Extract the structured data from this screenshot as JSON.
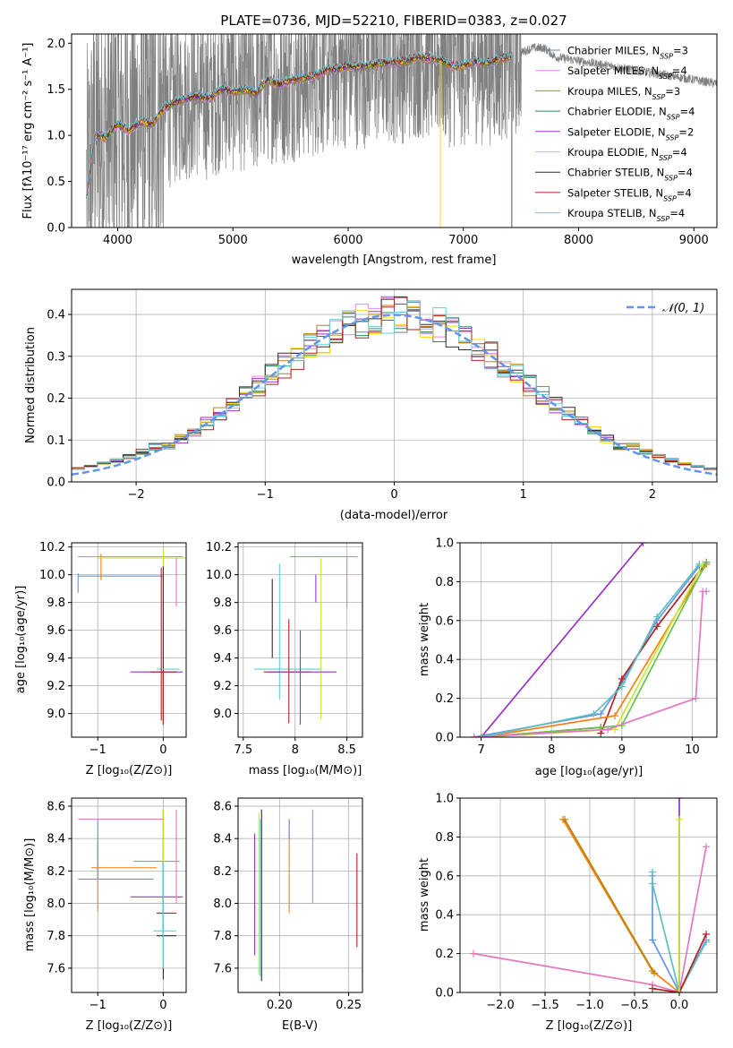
{
  "figure": {
    "title": "PLATE=0736, MJD=52210, FIBERID=0383, z=0.027"
  },
  "colors": {
    "Chabrier MILES": "#708090",
    "Salpeter MILES": "#ee82ee",
    "Kroupa MILES": "#b8860b",
    "Chabrier ELODIE": "#2e8b57",
    "Salpeter ELODIE": "#9932cc",
    "Kroupa ELODIE": "#ffd700",
    "Chabrier STELIB": "#2f2f2f",
    "Salpeter STELIB": "#b22222",
    "Kroupa STELIB": "#66cdd8",
    "data_spectrum": "#808080",
    "mw_blue": "#6495ed",
    "mw_orange": "#ff7f0e",
    "mw_yellowgreen": "#c8e632",
    "mw_pink": "#e377c2",
    "mw_teal": "#5fbfbf",
    "mw_green": "#66c24a",
    "gauss": "#6495ed"
  },
  "chart_data": [
    {
      "id": "spectrum",
      "type": "line",
      "title": "PLATE=0736, MJD=52210, FIBERID=0383, z=0.027",
      "xlabel": "wavelength [Angstrom, rest frame]",
      "ylabel": "Flux [f_λ 10^-17 erg cm^-2 s^-1 A^-1]",
      "xlim": [
        3600,
        9200
      ],
      "ylim": [
        0,
        2.1
      ],
      "xticks": [
        4000,
        5000,
        6000,
        7000,
        8000,
        9000
      ],
      "yticks": [
        0.0,
        0.5,
        1.0,
        1.5,
        2.0
      ],
      "grid": false,
      "legend_position": "right",
      "legend": [
        {
          "name": "Chabrier MILES",
          "nssp": "3"
        },
        {
          "name": "Salpeter MILES",
          "nssp": "4"
        },
        {
          "name": "Kroupa MILES",
          "nssp": "3"
        },
        {
          "name": "Chabrier ELODIE",
          "nssp": "4"
        },
        {
          "name": "Salpeter ELODIE",
          "nssp": "2"
        },
        {
          "name": "Kroupa ELODIE",
          "nssp": "4"
        },
        {
          "name": "Chabrier STELIB",
          "nssp": "4"
        },
        {
          "name": "Salpeter STELIB",
          "nssp": "4"
        },
        {
          "name": "Kroupa STELIB",
          "nssp": "4"
        }
      ],
      "model_continuum": {
        "x": [
          3730,
          3800,
          3900,
          4000,
          4100,
          4200,
          4300,
          4400,
          4500,
          4600,
          4700,
          4800,
          4900,
          5000,
          5100,
          5200,
          5300,
          5400,
          5500,
          5600,
          5700,
          5800,
          5900,
          6000,
          6100,
          6200,
          6300,
          6400,
          6500,
          6600,
          6700,
          6800,
          6900,
          7000,
          7100,
          7200,
          7300,
          7400,
          7500,
          7600,
          7700,
          7800
        ],
        "y": [
          0.35,
          1.0,
          0.98,
          1.12,
          1.05,
          1.15,
          1.12,
          1.3,
          1.35,
          1.4,
          1.42,
          1.4,
          1.5,
          1.48,
          1.5,
          1.45,
          1.6,
          1.55,
          1.6,
          1.62,
          1.64,
          1.7,
          1.72,
          1.75,
          1.74,
          1.76,
          1.78,
          1.8,
          1.8,
          1.85,
          1.84,
          1.82,
          1.75,
          1.76,
          1.8,
          1.78,
          1.82,
          1.85,
          1.9,
          1.95,
          1.95,
          1.85
        ]
      },
      "data_range_x": [
        3730,
        9200
      ],
      "model_range_x": [
        3730,
        7420
      ]
    },
    {
      "id": "residuals",
      "type": "bar",
      "xlabel": "(data-model)/error",
      "ylabel": "Normed distribution",
      "xlim": [
        -2.5,
        2.5
      ],
      "ylim": [
        0,
        0.46
      ],
      "xticks": [
        -2,
        -1,
        0,
        1,
        2
      ],
      "yticks": [
        0.0,
        0.1,
        0.2,
        0.3,
        0.4
      ],
      "grid": true,
      "legend_position": "top-right",
      "legend": [
        {
          "name": "𝒩(0, 1)"
        }
      ],
      "bin_width": 0.1
    },
    {
      "id": "age-vs-Z",
      "type": "scatter",
      "xlabel": "Z [log10(Z/Z☉)]",
      "ylabel": "age [log10(age/yr)]",
      "xlim": [
        -1.4,
        0.35
      ],
      "ylim": [
        8.83,
        10.23
      ],
      "xticks": [
        -1,
        0
      ],
      "yticks": [
        9.0,
        9.2,
        9.4,
        9.6,
        9.8,
        10.0,
        10.2
      ],
      "grid": true
    },
    {
      "id": "age-vs-mass",
      "type": "scatter",
      "xlabel": "mass [log10(M/M☉)]",
      "ylabel": "",
      "xlim": [
        7.45,
        8.65
      ],
      "ylim": [
        8.83,
        10.23
      ],
      "xticks": [
        7.5,
        8.0,
        8.5
      ],
      "yticks": [
        9.0,
        9.2,
        9.4,
        9.6,
        9.8,
        10.0,
        10.2
      ],
      "grid": true
    },
    {
      "id": "mass-weight-vs-age",
      "type": "line",
      "xlabel": "age [log10(age/yr)]",
      "ylabel": "mass weight",
      "xlim": [
        6.7,
        10.35
      ],
      "ylim": [
        0,
        1
      ],
      "xticks": [
        7,
        8,
        9,
        10
      ],
      "yticks": [
        0.0,
        0.2,
        0.4,
        0.6,
        0.8,
        1.0
      ],
      "grid": true,
      "series": [
        {
          "color": "#9932cc",
          "x": [
            7.0,
            9.3
          ],
          "y": [
            0.0,
            1.0
          ]
        },
        {
          "color": "#6495ed",
          "x": [
            6.9,
            8.7,
            9.0,
            9.5,
            10.1
          ],
          "y": [
            0.0,
            0.12,
            0.28,
            0.6,
            0.88
          ]
        },
        {
          "color": "#b22222",
          "x": [
            7.0,
            8.7,
            8.7,
            9.0,
            9.5,
            10.2
          ],
          "y": [
            0.0,
            0.05,
            0.02,
            0.3,
            0.57,
            0.9
          ]
        },
        {
          "color": "#ff7f0e",
          "x": [
            7.0,
            8.9,
            10.2
          ],
          "y": [
            0.0,
            0.11,
            0.89
          ]
        },
        {
          "color": "#5fbfbf",
          "x": [
            7.0,
            8.6,
            9.0,
            9.5,
            10.1
          ],
          "y": [
            0.0,
            0.12,
            0.26,
            0.62,
            0.89
          ]
        },
        {
          "color": "#c8e632",
          "x": [
            7.0,
            8.9,
            10.15
          ],
          "y": [
            0.0,
            0.04,
            0.89
          ]
        },
        {
          "color": "#66c24a",
          "x": [
            7.0,
            8.7,
            9.0,
            10.2
          ],
          "y": [
            0.0,
            0.05,
            0.06,
            0.9
          ]
        },
        {
          "color": "#e377c2",
          "x": [
            6.9,
            8.8,
            10.05,
            10.15,
            10.2
          ],
          "y": [
            0.0,
            0.04,
            0.2,
            0.75,
            0.75
          ]
        }
      ]
    },
    {
      "id": "mass-vs-Z",
      "type": "scatter",
      "xlabel": "Z [log10(Z/Z☉)]",
      "ylabel": "mass [log10(M/M☉)]",
      "xlim": [
        -1.4,
        0.35
      ],
      "ylim": [
        7.45,
        8.65
      ],
      "xticks": [
        -1,
        0
      ],
      "yticks": [
        7.6,
        7.8,
        8.0,
        8.2,
        8.4,
        8.6
      ],
      "grid": true
    },
    {
      "id": "mass-vs-EBV",
      "type": "scatter",
      "xlabel": "E(B-V)",
      "ylabel": "",
      "xlim": [
        0.17,
        0.26
      ],
      "ylim": [
        7.45,
        8.65
      ],
      "xticks": [
        0.2,
        0.25
      ],
      "yticks": [
        7.6,
        7.8,
        8.0,
        8.2,
        8.4,
        8.6
      ],
      "grid": true
    },
    {
      "id": "mass-weight-vs-Z",
      "type": "line",
      "xlabel": "Z [log10(Z/Z☉)]",
      "ylabel": "mass weight",
      "xlim": [
        -2.45,
        0.42
      ],
      "ylim": [
        0,
        1
      ],
      "xticks": [
        -2.0,
        -1.5,
        -1.0,
        -0.5,
        0.0
      ],
      "yticks": [
        0.0,
        0.2,
        0.4,
        0.6,
        0.8,
        1.0
      ],
      "grid": true,
      "series": [
        {
          "color": "#e377c2",
          "x": [
            -2.3,
            -0.3,
            0.0,
            0.3
          ],
          "y": [
            0.2,
            0.04,
            0.0,
            0.75
          ]
        },
        {
          "color": "#ff7f0e",
          "x": [
            -1.3,
            -0.3,
            0.0
          ],
          "y": [
            0.89,
            0.11,
            0.0
          ]
        },
        {
          "color": "#b8860b",
          "x": [
            -1.28,
            -0.28
          ],
          "y": [
            0.89,
            0.1
          ]
        },
        {
          "color": "#6495ed",
          "x": [
            -0.3,
            -0.3,
            0.0,
            0.3
          ],
          "y": [
            0.6,
            0.27,
            0.0,
            0.27
          ]
        },
        {
          "color": "#5fbfbf",
          "x": [
            -0.3,
            -0.3,
            0.0,
            0.3
          ],
          "y": [
            0.62,
            0.56,
            0.0,
            0.26
          ]
        },
        {
          "color": "#b22222",
          "x": [
            -0.3,
            0.0,
            0.3
          ],
          "y": [
            0.02,
            0.0,
            0.3
          ]
        },
        {
          "color": "#9932cc",
          "x": [
            0.0,
            0.0
          ],
          "y": [
            1.0,
            0.0
          ]
        },
        {
          "color": "#c8e632",
          "x": [
            0.0,
            0.0
          ],
          "y": [
            0.89,
            0.0
          ]
        }
      ]
    }
  ]
}
